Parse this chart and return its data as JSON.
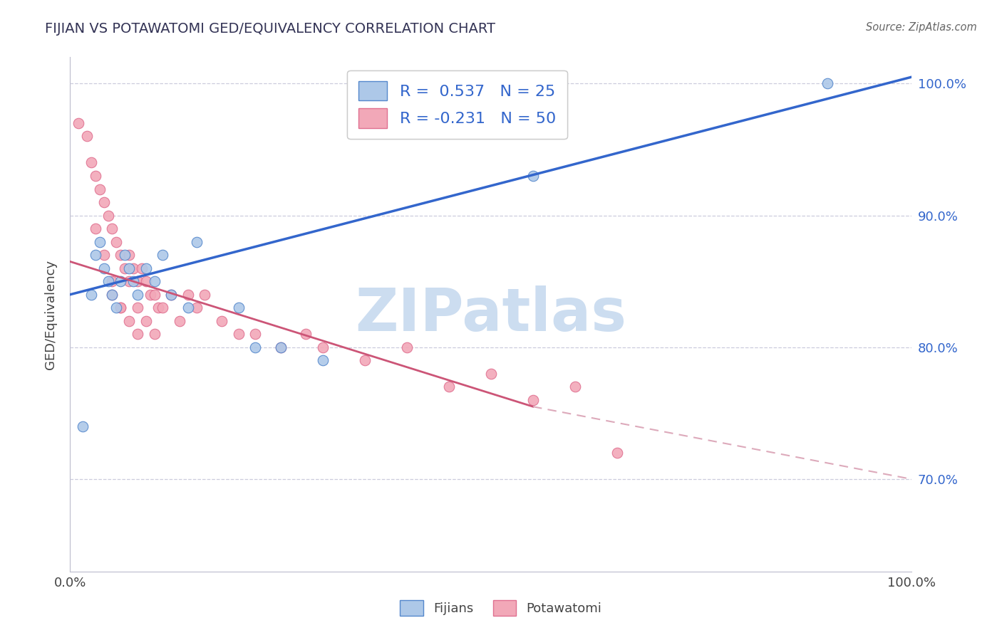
{
  "title": "FIJIAN VS POTAWATOMI GED/EQUIVALENCY CORRELATION CHART",
  "source": "Source: ZipAtlas.com",
  "ylabel": "GED/Equivalency",
  "xmin": 0.0,
  "xmax": 100.0,
  "ymin": 63.0,
  "ymax": 102.0,
  "ytick_vals": [
    70.0,
    80.0,
    90.0,
    100.0
  ],
  "right_ytick_labels": [
    "70.0%",
    "80.0%",
    "90.0%",
    "100.0%"
  ],
  "fijian_color": "#adc8e8",
  "potawatomi_color": "#f2a8b8",
  "fijian_edge_color": "#5588cc",
  "potawatomi_edge_color": "#e07090",
  "fijian_line_color": "#3366cc",
  "potawatomi_line_color": "#cc5577",
  "potawatomi_dashed_color": "#ddaabb",
  "R_fijian": 0.537,
  "N_fijian": 25,
  "R_potawatomi": -0.231,
  "N_potawatomi": 50,
  "watermark": "ZIPatlas",
  "watermark_color": "#ccddf0",
  "fijian_scatter_x": [
    1.5,
    2.5,
    3.0,
    3.5,
    4.0,
    4.5,
    5.0,
    5.5,
    6.0,
    6.5,
    7.0,
    7.5,
    8.0,
    9.0,
    10.0,
    11.0,
    12.0,
    15.0,
    20.0,
    22.0,
    25.0,
    55.0,
    90.0,
    14.0,
    30.0
  ],
  "fijian_scatter_y": [
    74.0,
    84.0,
    87.0,
    88.0,
    86.0,
    85.0,
    84.0,
    83.0,
    85.0,
    87.0,
    86.0,
    85.0,
    84.0,
    86.0,
    85.0,
    87.0,
    84.0,
    88.0,
    83.0,
    80.0,
    80.0,
    93.0,
    100.0,
    83.0,
    79.0
  ],
  "potawatomi_scatter_x": [
    1.0,
    2.0,
    2.5,
    3.0,
    3.5,
    4.0,
    4.5,
    5.0,
    5.5,
    6.0,
    6.5,
    7.0,
    7.5,
    8.0,
    8.5,
    9.0,
    9.5,
    10.0,
    10.5,
    11.0,
    12.0,
    13.0,
    14.0,
    15.0,
    16.0,
    18.0,
    20.0,
    22.0,
    25.0,
    28.0,
    30.0,
    35.0,
    40.0,
    45.0,
    50.0,
    55.0,
    60.0,
    65.0,
    5.0,
    6.0,
    7.0,
    8.0,
    9.0,
    10.0,
    3.0,
    4.0,
    5.0,
    6.0,
    7.0,
    8.0
  ],
  "potawatomi_scatter_y": [
    97.0,
    96.0,
    94.0,
    93.0,
    92.0,
    91.0,
    90.0,
    89.0,
    88.0,
    87.0,
    86.0,
    87.0,
    86.0,
    85.0,
    86.0,
    85.0,
    84.0,
    84.0,
    83.0,
    83.0,
    84.0,
    82.0,
    84.0,
    83.0,
    84.0,
    82.0,
    81.0,
    81.0,
    80.0,
    81.0,
    80.0,
    79.0,
    80.0,
    77.0,
    78.0,
    76.0,
    77.0,
    72.0,
    84.0,
    83.0,
    85.0,
    83.0,
    82.0,
    81.0,
    89.0,
    87.0,
    85.0,
    83.0,
    82.0,
    81.0
  ],
  "blue_line_x0": 0.0,
  "blue_line_x1": 100.0,
  "blue_line_y0": 84.0,
  "blue_line_y1": 100.5,
  "pink_solid_x0": 0.0,
  "pink_solid_x1": 55.0,
  "pink_solid_y0": 86.5,
  "pink_solid_y1": 75.5,
  "pink_dash_x0": 55.0,
  "pink_dash_x1": 100.0,
  "pink_dash_y0": 75.5,
  "pink_dash_y1": 70.0,
  "background_color": "#ffffff",
  "grid_color": "#ccccdd",
  "title_color": "#333355",
  "source_color": "#666666",
  "axis_label_color": "#444444",
  "right_tick_color": "#3366cc",
  "legend_edge_color": "#cccccc"
}
